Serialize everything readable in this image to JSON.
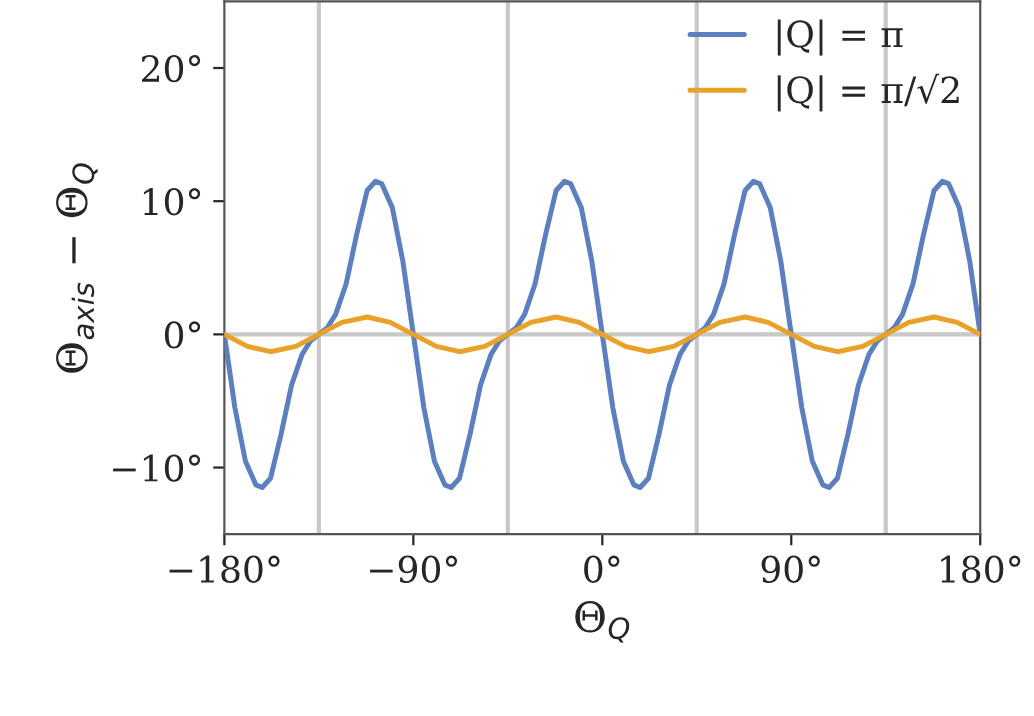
{
  "chart_data": {
    "type": "line",
    "xlabel": "Θ$_{Q}$",
    "ylabel": "Θ$_{axis}$ − Θ$_{Q}$",
    "xlim": [
      -180,
      180
    ],
    "ylim": [
      -15,
      25
    ],
    "xticks": [
      {
        "value": -180,
        "label": "−180°"
      },
      {
        "value": -90,
        "label": "−90°"
      },
      {
        "value": 0,
        "label": "0°"
      },
      {
        "value": 90,
        "label": "90°"
      },
      {
        "value": 180,
        "label": "180°"
      }
    ],
    "yticks": [
      {
        "value": -10,
        "label": "−10°"
      },
      {
        "value": 0,
        "label": "0°"
      },
      {
        "value": 10,
        "label": "10°"
      },
      {
        "value": 20,
        "label": "20°"
      }
    ],
    "series": [
      {
        "name": "|Q| = π",
        "color": "#5b7fbf",
        "x": [
          -180,
          -175,
          -170,
          -165,
          -162,
          -158,
          -153,
          -148,
          -143,
          -139,
          -135,
          -131,
          -127,
          -122,
          -117,
          -112,
          -108,
          -105,
          -100,
          -95,
          -90,
          -85,
          -80,
          -75,
          -72,
          -68,
          -63,
          -58,
          -53,
          -49,
          -45,
          -41,
          -37,
          -32,
          -27,
          -22,
          -18,
          -15,
          -10,
          -5,
          0,
          5,
          10,
          15,
          18,
          22,
          27,
          32,
          37,
          41,
          45,
          49,
          53,
          58,
          63,
          68,
          72,
          75,
          80,
          85,
          90,
          95,
          100,
          105,
          108,
          112,
          117,
          122,
          127,
          131,
          135,
          139,
          143,
          148,
          153,
          158,
          162,
          165,
          170,
          175,
          180
        ],
        "values": [
          0,
          -5.5,
          -9.5,
          -11.3,
          -11.5,
          -10.8,
          -7.5,
          -3.8,
          -1.5,
          -0.5,
          0,
          0.5,
          1.5,
          3.8,
          7.5,
          10.8,
          11.5,
          11.3,
          9.5,
          5.5,
          0,
          -5.5,
          -9.5,
          -11.3,
          -11.5,
          -10.8,
          -7.5,
          -3.8,
          -1.5,
          -0.5,
          0,
          0.5,
          1.5,
          3.8,
          7.5,
          10.8,
          11.5,
          11.3,
          9.5,
          5.5,
          0,
          -5.5,
          -9.5,
          -11.3,
          -11.5,
          -10.8,
          -7.5,
          -3.8,
          -1.5,
          -0.5,
          0,
          0.5,
          1.5,
          3.8,
          7.5,
          10.8,
          11.5,
          11.3,
          9.5,
          5.5,
          0,
          -5.5,
          -9.5,
          -11.3,
          -11.5,
          -10.8,
          -7.5,
          -3.8,
          -1.5,
          -0.5,
          0,
          0.5,
          1.5,
          3.8,
          7.5,
          10.8,
          11.5,
          11.3,
          9.5,
          5.5,
          0
        ]
      },
      {
        "name": "|Q| = π/√2",
        "color": "#e8a22a",
        "x": [
          -180,
          -169,
          -158,
          -146,
          -135,
          -124,
          -112,
          -101,
          -90,
          -79,
          -68,
          -56,
          -45,
          -34,
          -22,
          -11,
          0,
          11,
          22,
          34,
          45,
          56,
          68,
          79,
          90,
          101,
          112,
          124,
          135,
          146,
          158,
          169,
          180
        ],
        "values": [
          0,
          -0.9,
          -1.3,
          -0.9,
          0,
          0.9,
          1.3,
          0.9,
          0,
          -0.9,
          -1.3,
          -0.9,
          0,
          0.9,
          1.3,
          0.9,
          0,
          -0.9,
          -1.3,
          -0.9,
          0,
          0.9,
          1.3,
          0.9,
          0,
          -0.9,
          -1.3,
          -0.9,
          0,
          0.9,
          1.3,
          0.9,
          0
        ]
      }
    ],
    "ref_lines": [
      {
        "axis": "x",
        "value": -135,
        "color": "#c8c8c8"
      },
      {
        "axis": "x",
        "value": -45,
        "color": "#c8c8c8"
      },
      {
        "axis": "x",
        "value": 45,
        "color": "#c8c8c8"
      },
      {
        "axis": "x",
        "value": 135,
        "color": "#c8c8c8"
      },
      {
        "axis": "y",
        "value": 0,
        "color": "#c8c8c8"
      }
    ],
    "legend": "top right",
    "grid": false,
    "line_style": "solid",
    "marker": "none"
  }
}
